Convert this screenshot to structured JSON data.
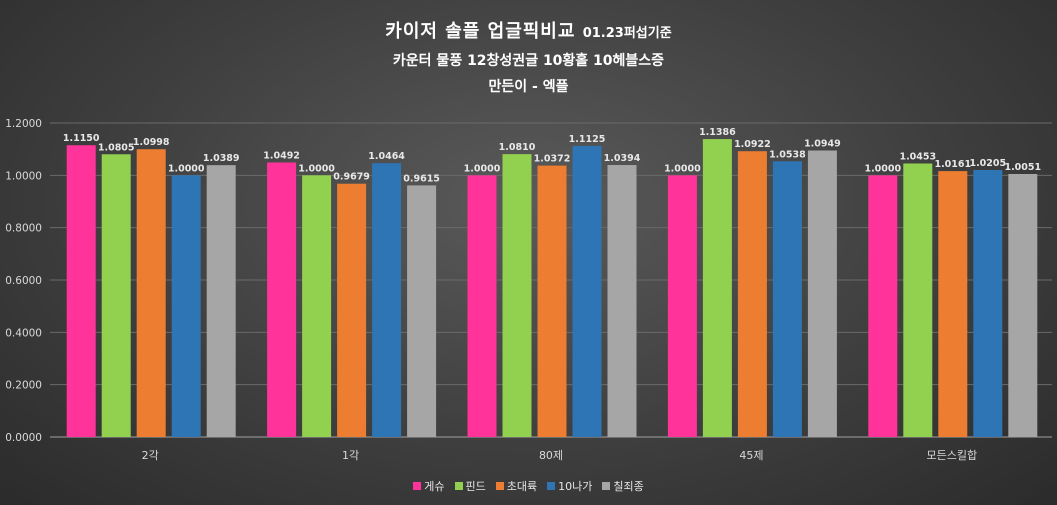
{
  "title": {
    "main": "카이저 솔플 업글픽비교",
    "main_suffix": "01.23퍼섭기준",
    "subtitle_1": "카운터 물풍 12창성권글 10황홀 10헤블스증",
    "subtitle_2": "만든이 - 엑플"
  },
  "colors": {
    "게슈": "#ff3399",
    "핀드": "#92d050",
    "초대륙": "#ed7d31",
    "10나가": "#2e75b6",
    "칠죄종": "#a6a6a6"
  },
  "chart_data": {
    "type": "bar",
    "title": "카이저 솔플 업글픽비교",
    "categories": [
      "2각",
      "1각",
      "80제",
      "45제",
      "모든스킬합"
    ],
    "series": [
      {
        "name": "게슈",
        "values": [
          1.115,
          1.0492,
          1.0,
          1.0,
          1.0
        ],
        "labels": [
          "1.1150",
          "1.0492",
          "1.0000",
          "1.0000",
          "1.0000"
        ]
      },
      {
        "name": "핀드",
        "values": [
          1.0805,
          1.0,
          1.081,
          1.1386,
          1.0453
        ],
        "labels": [
          "1.0805",
          "1.0000",
          "1.0810",
          "1.1386",
          "1.0453"
        ]
      },
      {
        "name": "초대륙",
        "values": [
          1.0998,
          0.9679,
          1.0372,
          1.0922,
          1.0161
        ],
        "labels": [
          "1.0998",
          "0.9679",
          "1.0372",
          "1.0922",
          "1.0161"
        ]
      },
      {
        "name": "10나가",
        "values": [
          1.0,
          1.0464,
          1.1125,
          1.0538,
          1.0205
        ],
        "labels": [
          "1.0000",
          "1.0464",
          "1.1125",
          "1.0538",
          "1.0205"
        ]
      },
      {
        "name": "칠죄종",
        "values": [
          1.0389,
          0.9615,
          1.0394,
          1.0949,
          1.0051
        ],
        "labels": [
          "1.0389",
          "0.9615",
          "1.0394",
          "1.0949",
          "1.0051"
        ]
      }
    ],
    "ylim": [
      0,
      1.2
    ],
    "yticks": [
      "0.0000",
      "0.2000",
      "0.4000",
      "0.6000",
      "0.8000",
      "1.0000",
      "1.2000"
    ],
    "xlabel": "",
    "ylabel": "",
    "grid": true,
    "legend": "bottom"
  }
}
